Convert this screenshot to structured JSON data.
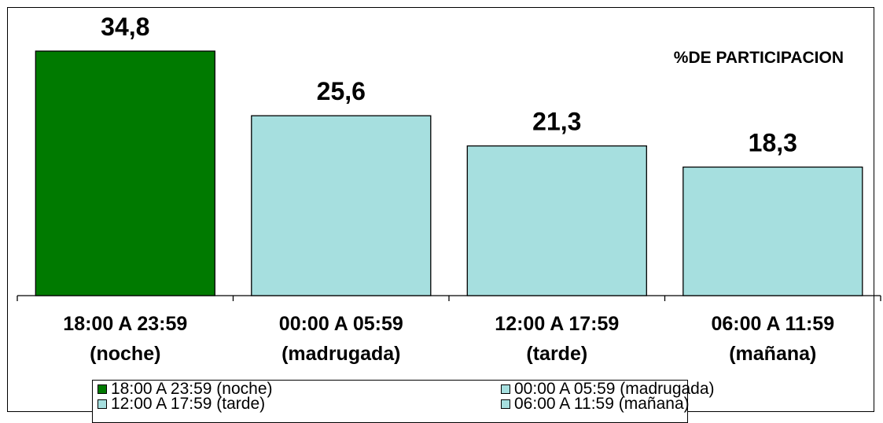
{
  "chart_data": {
    "type": "bar",
    "annotation": "%DE PARTICIPACION",
    "categories": [
      [
        "18:00 A 23:59",
        "(noche)"
      ],
      [
        "00:00 A 05:59",
        "(madrugada)"
      ],
      [
        "12:00 A 17:59",
        "(tarde)"
      ],
      [
        "06:00 A 11:59",
        "(mañana)"
      ]
    ],
    "values": [
      34.8,
      25.6,
      21.3,
      18.3
    ],
    "value_labels": [
      "34,8",
      "25,6",
      "21,3",
      "18,3"
    ],
    "colors": [
      "#007A00",
      "#A6DFDF",
      "#A6DFDF",
      "#A6DFDF"
    ],
    "ylim": [
      0,
      40
    ],
    "grid": false,
    "legend": {
      "position": "bottom",
      "items": [
        {
          "label": "18:00 A 23:59 (noche)",
          "color": "#007A00"
        },
        {
          "label": "00:00 A 05:59 (madrugada)",
          "color": "#A6DFDF"
        },
        {
          "label": "12:00 A 17:59 (tarde)",
          "color": "#A6DFDF"
        },
        {
          "label": "06:00 A 11:59 (mañana)",
          "color": "#A6DFDF"
        }
      ]
    }
  }
}
